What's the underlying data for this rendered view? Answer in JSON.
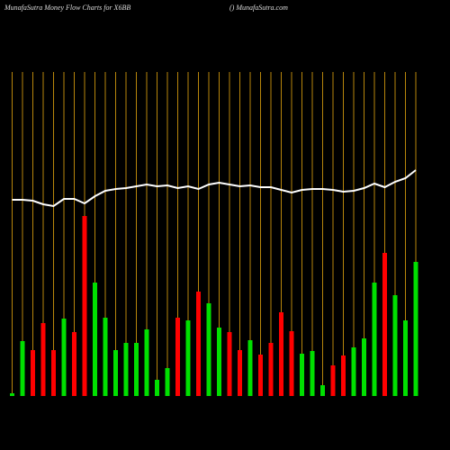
{
  "chart_data": {
    "type": "bar",
    "title": "MunafaSutra  Money Flow  Charts for X6BB",
    "subtitle": "() MunafaSutra.com",
    "categories": [
      null,
      null,
      null,
      null,
      null,
      null,
      null,
      null,
      null,
      null,
      null,
      null,
      null,
      null,
      null,
      null,
      null,
      null,
      null,
      null,
      null,
      null,
      null,
      null,
      null,
      null,
      null,
      null,
      null,
      null,
      null,
      null,
      null,
      null,
      null,
      null,
      null,
      null,
      null,
      null
    ],
    "ylim": [
      0,
      360
    ],
    "grid_color": "#b8860b",
    "series": [
      {
        "type": "bar",
        "values": [
          3,
          61,
          51,
          81,
          51,
          86,
          71,
          200,
          126,
          87,
          51,
          59,
          59,
          74,
          18,
          31,
          87,
          84,
          116,
          103,
          76,
          71,
          51,
          62,
          46,
          59,
          93,
          72,
          47,
          50,
          12,
          34,
          45,
          54,
          64,
          126,
          159,
          112,
          84,
          149
        ],
        "colors": [
          "#00e000",
          "#00e000",
          "#ff0000",
          "#ff0000",
          "#ff0000",
          "#00e000",
          "#ff0000",
          "#ff0000",
          "#00e000",
          "#00e000",
          "#00e000",
          "#00e000",
          "#00e000",
          "#00e000",
          "#00e000",
          "#00e000",
          "#ff0000",
          "#00e000",
          "#ff0000",
          "#00e000",
          "#00e000",
          "#ff0000",
          "#ff0000",
          "#00e000",
          "#ff0000",
          "#ff0000",
          "#ff0000",
          "#ff0000",
          "#00e000",
          "#00e000",
          "#00e000",
          "#ff0000",
          "#ff0000",
          "#00e000",
          "#00e000",
          "#00e000",
          "#ff0000",
          "#00e000",
          "#00e000",
          "#00e000"
        ]
      },
      {
        "type": "line",
        "color": "#ffffff",
        "values": [
          218,
          218,
          217,
          213,
          211,
          219,
          219,
          214,
          222,
          228,
          230,
          231,
          233,
          235,
          233,
          234,
          231,
          233,
          230,
          235,
          237,
          235,
          233,
          234,
          232,
          232,
          229,
          226,
          229,
          230,
          230,
          229,
          227,
          228,
          231,
          236,
          232,
          238,
          242,
          251
        ]
      }
    ]
  }
}
